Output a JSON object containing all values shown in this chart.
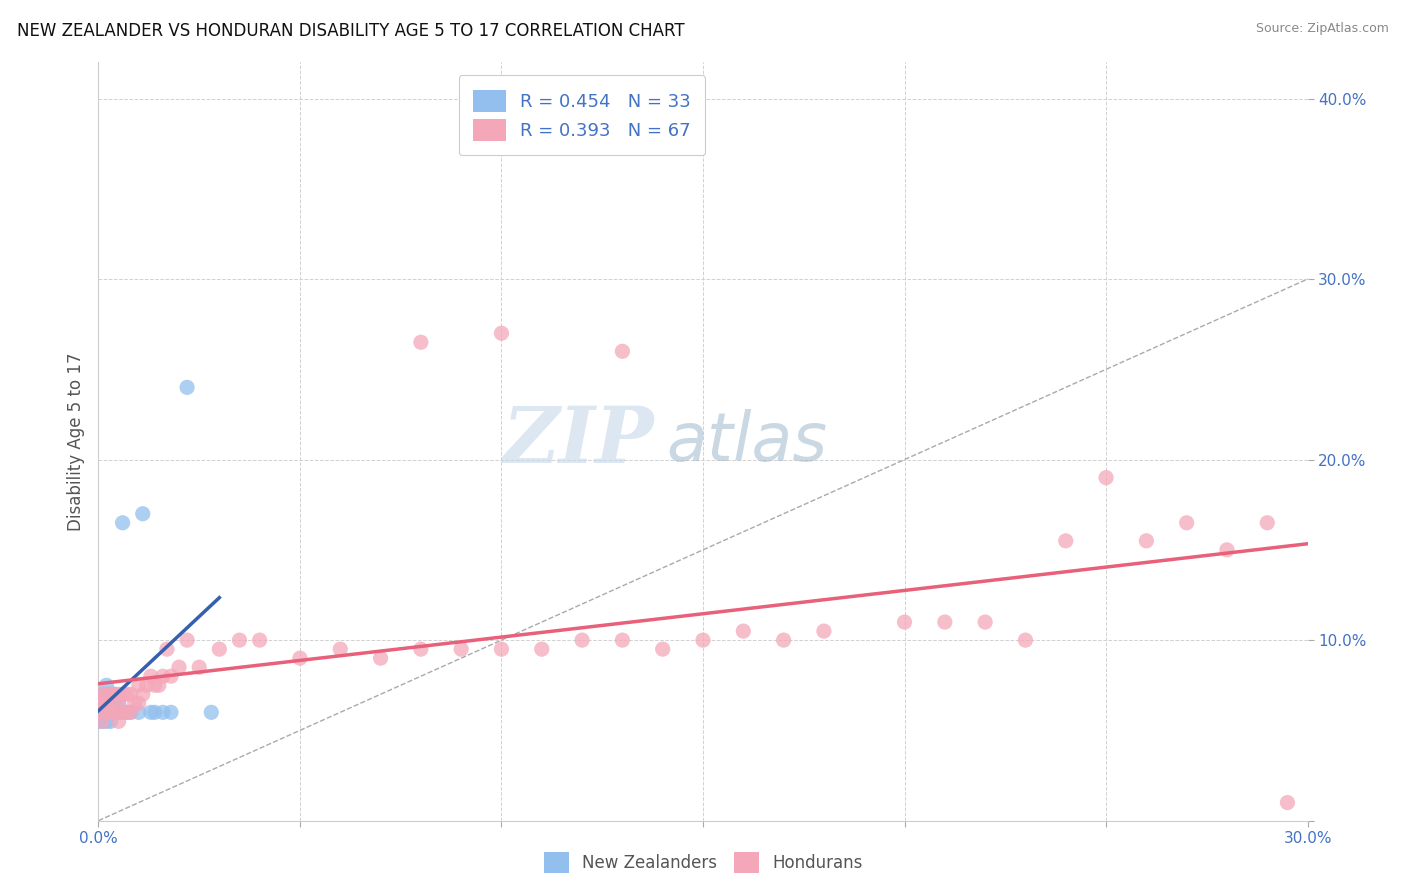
{
  "title": "NEW ZEALANDER VS HONDURAN DISABILITY AGE 5 TO 17 CORRELATION CHART",
  "source": "Source: ZipAtlas.com",
  "xlim": [
    0,
    0.3
  ],
  "ylim": [
    0,
    0.42
  ],
  "x_tick_positions": [
    0.0,
    0.05,
    0.1,
    0.15,
    0.2,
    0.25,
    0.3
  ],
  "x_tick_labels": [
    "0.0%",
    "",
    "",
    "",
    "",
    "",
    "30.0%"
  ],
  "y_tick_positions": [
    0.0,
    0.1,
    0.2,
    0.3,
    0.4
  ],
  "y_tick_labels": [
    "",
    "10.0%",
    "20.0%",
    "30.0%",
    "40.0%"
  ],
  "nz_R": 0.454,
  "nz_N": 33,
  "hon_R": 0.393,
  "hon_N": 67,
  "nz_color": "#92bfed",
  "hon_color": "#f4a7b9",
  "nz_line_color": "#3560b0",
  "hon_line_color": "#e8607a",
  "watermark_zip": "ZIP",
  "watermark_atlas": "atlas",
  "watermark_color_zip": "#c8d8ea",
  "watermark_color_atlas": "#a8c8d8",
  "nz_x": [
    0.0,
    0.0,
    0.0,
    0.001,
    0.001,
    0.001,
    0.001,
    0.002,
    0.002,
    0.002,
    0.002,
    0.002,
    0.003,
    0.003,
    0.003,
    0.003,
    0.004,
    0.004,
    0.004,
    0.005,
    0.005,
    0.006,
    0.006,
    0.007,
    0.008,
    0.01,
    0.011,
    0.013,
    0.014,
    0.016,
    0.018,
    0.022,
    0.028
  ],
  "nz_y": [
    0.055,
    0.06,
    0.065,
    0.055,
    0.06,
    0.065,
    0.07,
    0.055,
    0.06,
    0.065,
    0.07,
    0.075,
    0.055,
    0.06,
    0.065,
    0.07,
    0.06,
    0.065,
    0.07,
    0.06,
    0.065,
    0.06,
    0.165,
    0.06,
    0.06,
    0.06,
    0.17,
    0.06,
    0.06,
    0.06,
    0.06,
    0.24,
    0.06
  ],
  "hon_x": [
    0.0,
    0.0,
    0.001,
    0.001,
    0.001,
    0.002,
    0.002,
    0.002,
    0.003,
    0.003,
    0.003,
    0.004,
    0.004,
    0.005,
    0.005,
    0.005,
    0.006,
    0.006,
    0.007,
    0.007,
    0.008,
    0.008,
    0.009,
    0.01,
    0.01,
    0.011,
    0.012,
    0.013,
    0.014,
    0.015,
    0.016,
    0.017,
    0.018,
    0.02,
    0.022,
    0.025,
    0.03,
    0.035,
    0.04,
    0.05,
    0.06,
    0.07,
    0.08,
    0.09,
    0.1,
    0.11,
    0.12,
    0.13,
    0.14,
    0.15,
    0.16,
    0.17,
    0.18,
    0.2,
    0.21,
    0.22,
    0.23,
    0.24,
    0.25,
    0.26,
    0.27,
    0.28,
    0.29,
    0.1,
    0.08,
    0.13,
    0.295
  ],
  "hon_y": [
    0.06,
    0.065,
    0.055,
    0.065,
    0.07,
    0.06,
    0.065,
    0.07,
    0.06,
    0.065,
    0.07,
    0.06,
    0.07,
    0.055,
    0.065,
    0.07,
    0.06,
    0.07,
    0.06,
    0.07,
    0.06,
    0.07,
    0.065,
    0.065,
    0.075,
    0.07,
    0.075,
    0.08,
    0.075,
    0.075,
    0.08,
    0.095,
    0.08,
    0.085,
    0.1,
    0.085,
    0.095,
    0.1,
    0.1,
    0.09,
    0.095,
    0.09,
    0.095,
    0.095,
    0.095,
    0.095,
    0.1,
    0.1,
    0.095,
    0.1,
    0.105,
    0.1,
    0.105,
    0.11,
    0.11,
    0.11,
    0.1,
    0.155,
    0.19,
    0.155,
    0.165,
    0.15,
    0.165,
    0.27,
    0.265,
    0.26,
    0.01
  ]
}
